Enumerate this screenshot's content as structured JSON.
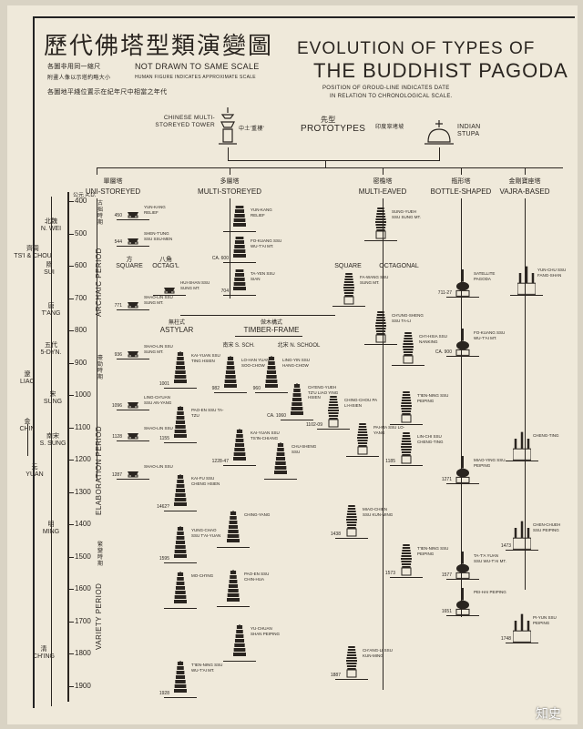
{
  "title": {
    "chinese": "歷代佛塔型類演變圖",
    "english_line1": "EVOLUTION OF TYPES OF",
    "english_line2": "THE BUDDHIST PAGODA",
    "note_cn_1": "各圖非用同一縮尺",
    "note_cn_2": "附畫人像以示塔約略大小",
    "note_cn_3": "各圖地平綫位置示在紀年尺中相當之年代",
    "note_en_1": "NOT DRAWN TO SAME SCALE",
    "note_en_2": "HUMAN FIGURE INDICATES APPROXIMATE SCALE",
    "note_en_3": "POSITION OF GROUD-LINE INDICATES DATE",
    "note_en_4": "IN RELATION TO CHRONOLOGICAL SCALE."
  },
  "prototypes": {
    "label_cn": "先型",
    "label_en": "PROTOTYPES",
    "chinese_tower_en": "CHINESE MULTI-STOREYED TOWER",
    "chinese_tower_cn": "中土'重樓'",
    "indian_stupa_en": "INDIAN STUPA",
    "indian_stupa_cn": "印度窣堵坡"
  },
  "categories": [
    {
      "cn": "單層塔",
      "en": "UNI-STOREYED"
    },
    {
      "cn": "多層塔",
      "en": "MULTI-STOREYED"
    },
    {
      "cn": "密檐塔",
      "en": "MULTI-EAVED"
    },
    {
      "cn": "瓶形塔",
      "en": "BOTTLE-SHAPED"
    },
    {
      "cn": "金剛寶座塔",
      "en": "VAJRA-BASED"
    }
  ],
  "subcategories": {
    "square": "SQUARE",
    "square_cn": "方",
    "octagonal": "OCTAG'L",
    "octagonal_cn": "八角",
    "square2": "SQUARE",
    "octagonal2": "OCTAGONAL",
    "astylar": "ASTYLAR",
    "astylar_cn": "無柱式",
    "timber_frame": "TIMBER-FRAME",
    "timber_frame_cn": "倣木構式",
    "s_school": "南宋 S. SCH.",
    "n_school": "北宋 N. SCHOOL"
  },
  "timeline": {
    "era_label": "公元 A.D.",
    "years": [
      "400",
      "500",
      "600",
      "700",
      "800",
      "900",
      "1000",
      "1100",
      "1200",
      "1300",
      "1400",
      "1500",
      "1600",
      "1700",
      "1800",
      "1900"
    ],
    "periods": [
      {
        "en": "ARCHAIC PERIOD",
        "cn": "古拙時期"
      },
      {
        "en": "ELABORATION PERIOD",
        "cn": "豪勁時期"
      },
      {
        "en": "VARIETY PERIOD",
        "cn": "繁變時期"
      }
    ],
    "dynasties": [
      {
        "cn": "北魏",
        "en": "N. WEI"
      },
      {
        "cn": "齊周",
        "en": "TS'I & CHOU"
      },
      {
        "cn": "隋",
        "en": "SUI"
      },
      {
        "cn": "唐",
        "en": "T'ANG"
      },
      {
        "cn": "五代",
        "en": "5-DYN."
      },
      {
        "cn": "遼",
        "en": "LIAO"
      },
      {
        "cn": "宋",
        "en": "SUNG"
      },
      {
        "cn": "金",
        "en": "CHIN"
      },
      {
        "cn": "南宋",
        "en": "S. SUNG"
      },
      {
        "cn": "元",
        "en": "YUAN"
      },
      {
        "cn": "明",
        "en": "MING"
      },
      {
        "cn": "清",
        "en": "CH'ING"
      }
    ]
  },
  "pagodas": [
    {
      "label": "YUN-KANG RELIEF",
      "year": "450",
      "type": "single"
    },
    {
      "label": "SHEN-T'UNG SSU SSU-MEN",
      "year": "544",
      "type": "single"
    },
    {
      "label": "HUI-SHAN SSU SUNG MT.",
      "year": "",
      "type": "single"
    },
    {
      "label": "SHAO-LIN SSU SUNG MT.",
      "year": "771",
      "type": "single"
    },
    {
      "label": "SHAO-LIN SSU SUNG MT.",
      "year": "936",
      "type": "single"
    },
    {
      "label": "LING-CH'UAN SSU AN-YANG",
      "year": "1096",
      "type": "single"
    },
    {
      "label": "SHAO-LIN SSU",
      "year": "1128",
      "type": "single"
    },
    {
      "label": "SHAO-LIN SSU",
      "year": "1287",
      "type": "single"
    },
    {
      "label": "YUN-KANG RELIEF",
      "year": "",
      "type": "stack"
    },
    {
      "label": "FO-KUANG SSU WU-T'AI MT.",
      "year": "CA. 600",
      "type": "stack"
    },
    {
      "label": "TA-YEN SSU SIAN",
      "year": "704",
      "type": "stack"
    },
    {
      "label": "KAI-YUAN SSU TING HSIEN",
      "year": "1001",
      "type": "stack"
    },
    {
      "label": "PAO-EN SSU TA-TZU",
      "year": "1155",
      "type": "stack"
    },
    {
      "label": "KAI-FU SSU CHENG HSIEN",
      "year": "1462?",
      "type": "stack"
    },
    {
      "label": "YUNG-CHAO SSU T'AI-YUAN",
      "year": "1595",
      "type": "stack"
    },
    {
      "label": "MO-CH'ING",
      "year": "",
      "type": "stack"
    },
    {
      "label": "T'IEN-NING SSU WU-T'AI MT.",
      "year": "1928",
      "type": "stack"
    },
    {
      "label": "LO-HAN YUAN SOO-CHOW",
      "year": "982",
      "type": "stack"
    },
    {
      "label": "LING-YIN SSU HANG-CHOW",
      "year": "960",
      "type": "stack"
    },
    {
      "label": "CH'ENG-YUEH TZ'U LIAO YING HSIEN",
      "year": "CA. 1060",
      "type": "stack"
    },
    {
      "label": "KAI-YUAN SSU TS'IN-CHIANG",
      "year": "1228-47",
      "type": "stack"
    },
    {
      "label": "CHU-SHENG SSU",
      "year": "",
      "type": "stack"
    },
    {
      "label": "CHING-YANG",
      "year": "",
      "type": "stack"
    },
    {
      "label": "PAO-EN SSU CHIN-HUA",
      "year": "",
      "type": "stack"
    },
    {
      "label": "YU-CHUAN SHAN PEIPING",
      "year": "",
      "type": "stack"
    },
    {
      "label": "SUNG-YUEH SSU SUNG MT.",
      "year": "",
      "type": "eaved"
    },
    {
      "label": "FA-WANG SSU SUNG MT.",
      "year": "",
      "type": "eaved"
    },
    {
      "label": "CH'UNG-SHENG SSU TA-LI",
      "year": "",
      "type": "eaved"
    },
    {
      "label": "CH'I-HSIA SSU NANKING",
      "year": "",
      "type": "eaved"
    },
    {
      "label": "T'IEN-NING SSU PEIPING",
      "year": "",
      "type": "eaved"
    },
    {
      "label": "CHING-CHOU PA LI-HSIEN",
      "year": "1102-09",
      "type": "eaved"
    },
    {
      "label": "PAI-MA SSU LO-YANG",
      "year": "",
      "type": "eaved"
    },
    {
      "label": "LIN-CHI SSU CHENG-TING",
      "year": "1185",
      "type": "eaved"
    },
    {
      "label": "MIAO-CHIEN SSU KUN-MING",
      "year": "1438",
      "type": "eaved"
    },
    {
      "label": "T'IEN-NING SSU PEIPING",
      "year": "1573",
      "type": "eaved"
    },
    {
      "label": "CH'ANG-LI SSU KUN-MING",
      "year": "1887",
      "type": "eaved"
    },
    {
      "label": "SATELLITE PAGODA",
      "year": "711-27",
      "type": "bottle"
    },
    {
      "label": "FO-KUANG SSU WU-T'AI MT.",
      "year": "CA. 900",
      "type": "bottle"
    },
    {
      "label": "MIAO-YING SSU PEIPING",
      "year": "1271",
      "type": "bottle"
    },
    {
      "label": "TA-T'A YUAN SSU WU-T'AI MT.",
      "year": "1577",
      "type": "bottle"
    },
    {
      "label": "PEI-HAI PEIPING",
      "year": "1651",
      "type": "bottle"
    },
    {
      "label": "YUN-CHU SSU FANG-SHAN",
      "year": "",
      "type": "vajra"
    },
    {
      "label": "CHENG-TING",
      "year": "",
      "type": "vajra"
    },
    {
      "label": "CHEN-CHUEH SSU PEIPING",
      "year": "1473",
      "type": "vajra"
    },
    {
      "label": "PI-YUN SSU PEIPING",
      "year": "1748",
      "type": "vajra"
    }
  ],
  "watermark": "知史",
  "colors": {
    "paper": "#efe9da",
    "ink": "#2a2520"
  }
}
